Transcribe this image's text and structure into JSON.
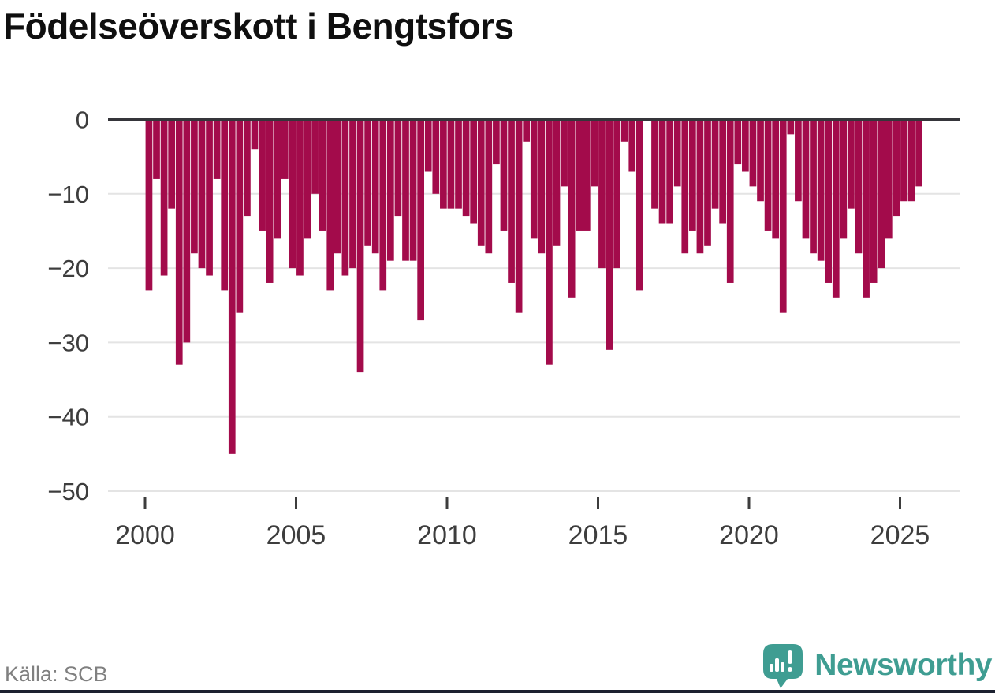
{
  "title": "Födelseöverskott i Bengtsfors",
  "source": "Källa: SCB",
  "brand": {
    "name": "Newsworthy",
    "color": "#3f9d92"
  },
  "colors": {
    "bar": "#a30b4b",
    "zero_line": "#35353a",
    "gridline": "#e4e4e4",
    "axis_text": "#3d3d3d",
    "title_text": "#0f0f0f",
    "source_text": "#808080",
    "bottom_strip": "#1c2130"
  },
  "chart_data": {
    "type": "bar",
    "title": "Födelseöverskott i Bengtsfors",
    "frequency": "quarterly",
    "x_start": "2000-Q1",
    "x_end": "2025-Q3",
    "ylim": [
      -50,
      0
    ],
    "grid": true,
    "y_ticks": [
      0,
      -10,
      -20,
      -30,
      -40,
      -50
    ],
    "y_tick_labels": [
      "0",
      "−10",
      "−20",
      "−30",
      "−40",
      "−50"
    ],
    "x_tick_years": [
      2000,
      2005,
      2010,
      2015,
      2020,
      2025
    ],
    "bar_color": "#a30b4b",
    "values": [
      -23,
      -8,
      -21,
      -12,
      -33,
      -30,
      -18,
      -20,
      -21,
      -8,
      -23,
      -45,
      -26,
      -13,
      -4,
      -15,
      -22,
      -16,
      -8,
      -20,
      -21,
      -16,
      -10,
      -15,
      -23,
      -18,
      -21,
      -20,
      -34,
      -17,
      -18,
      -23,
      -19,
      -13,
      -19,
      -19,
      -27,
      -7,
      -10,
      -12,
      -12,
      -12,
      -13,
      -14,
      -17,
      -18,
      -6,
      -15,
      -22,
      -26,
      -3,
      -16,
      -18,
      -33,
      -17,
      -9,
      -24,
      -15,
      -15,
      -9,
      -20,
      -31,
      -20,
      -3,
      -7,
      -23,
      0,
      -12,
      -14,
      -14,
      -9,
      -18,
      -15,
      -18,
      -17,
      -12,
      -14,
      -22,
      -6,
      -7,
      -9,
      -11,
      -15,
      -16,
      -26,
      -2,
      -11,
      -16,
      -18,
      -19,
      -22,
      -24,
      -16,
      -12,
      -18,
      -24,
      -22,
      -20,
      -16,
      -13,
      -11,
      -11,
      -9
    ]
  }
}
